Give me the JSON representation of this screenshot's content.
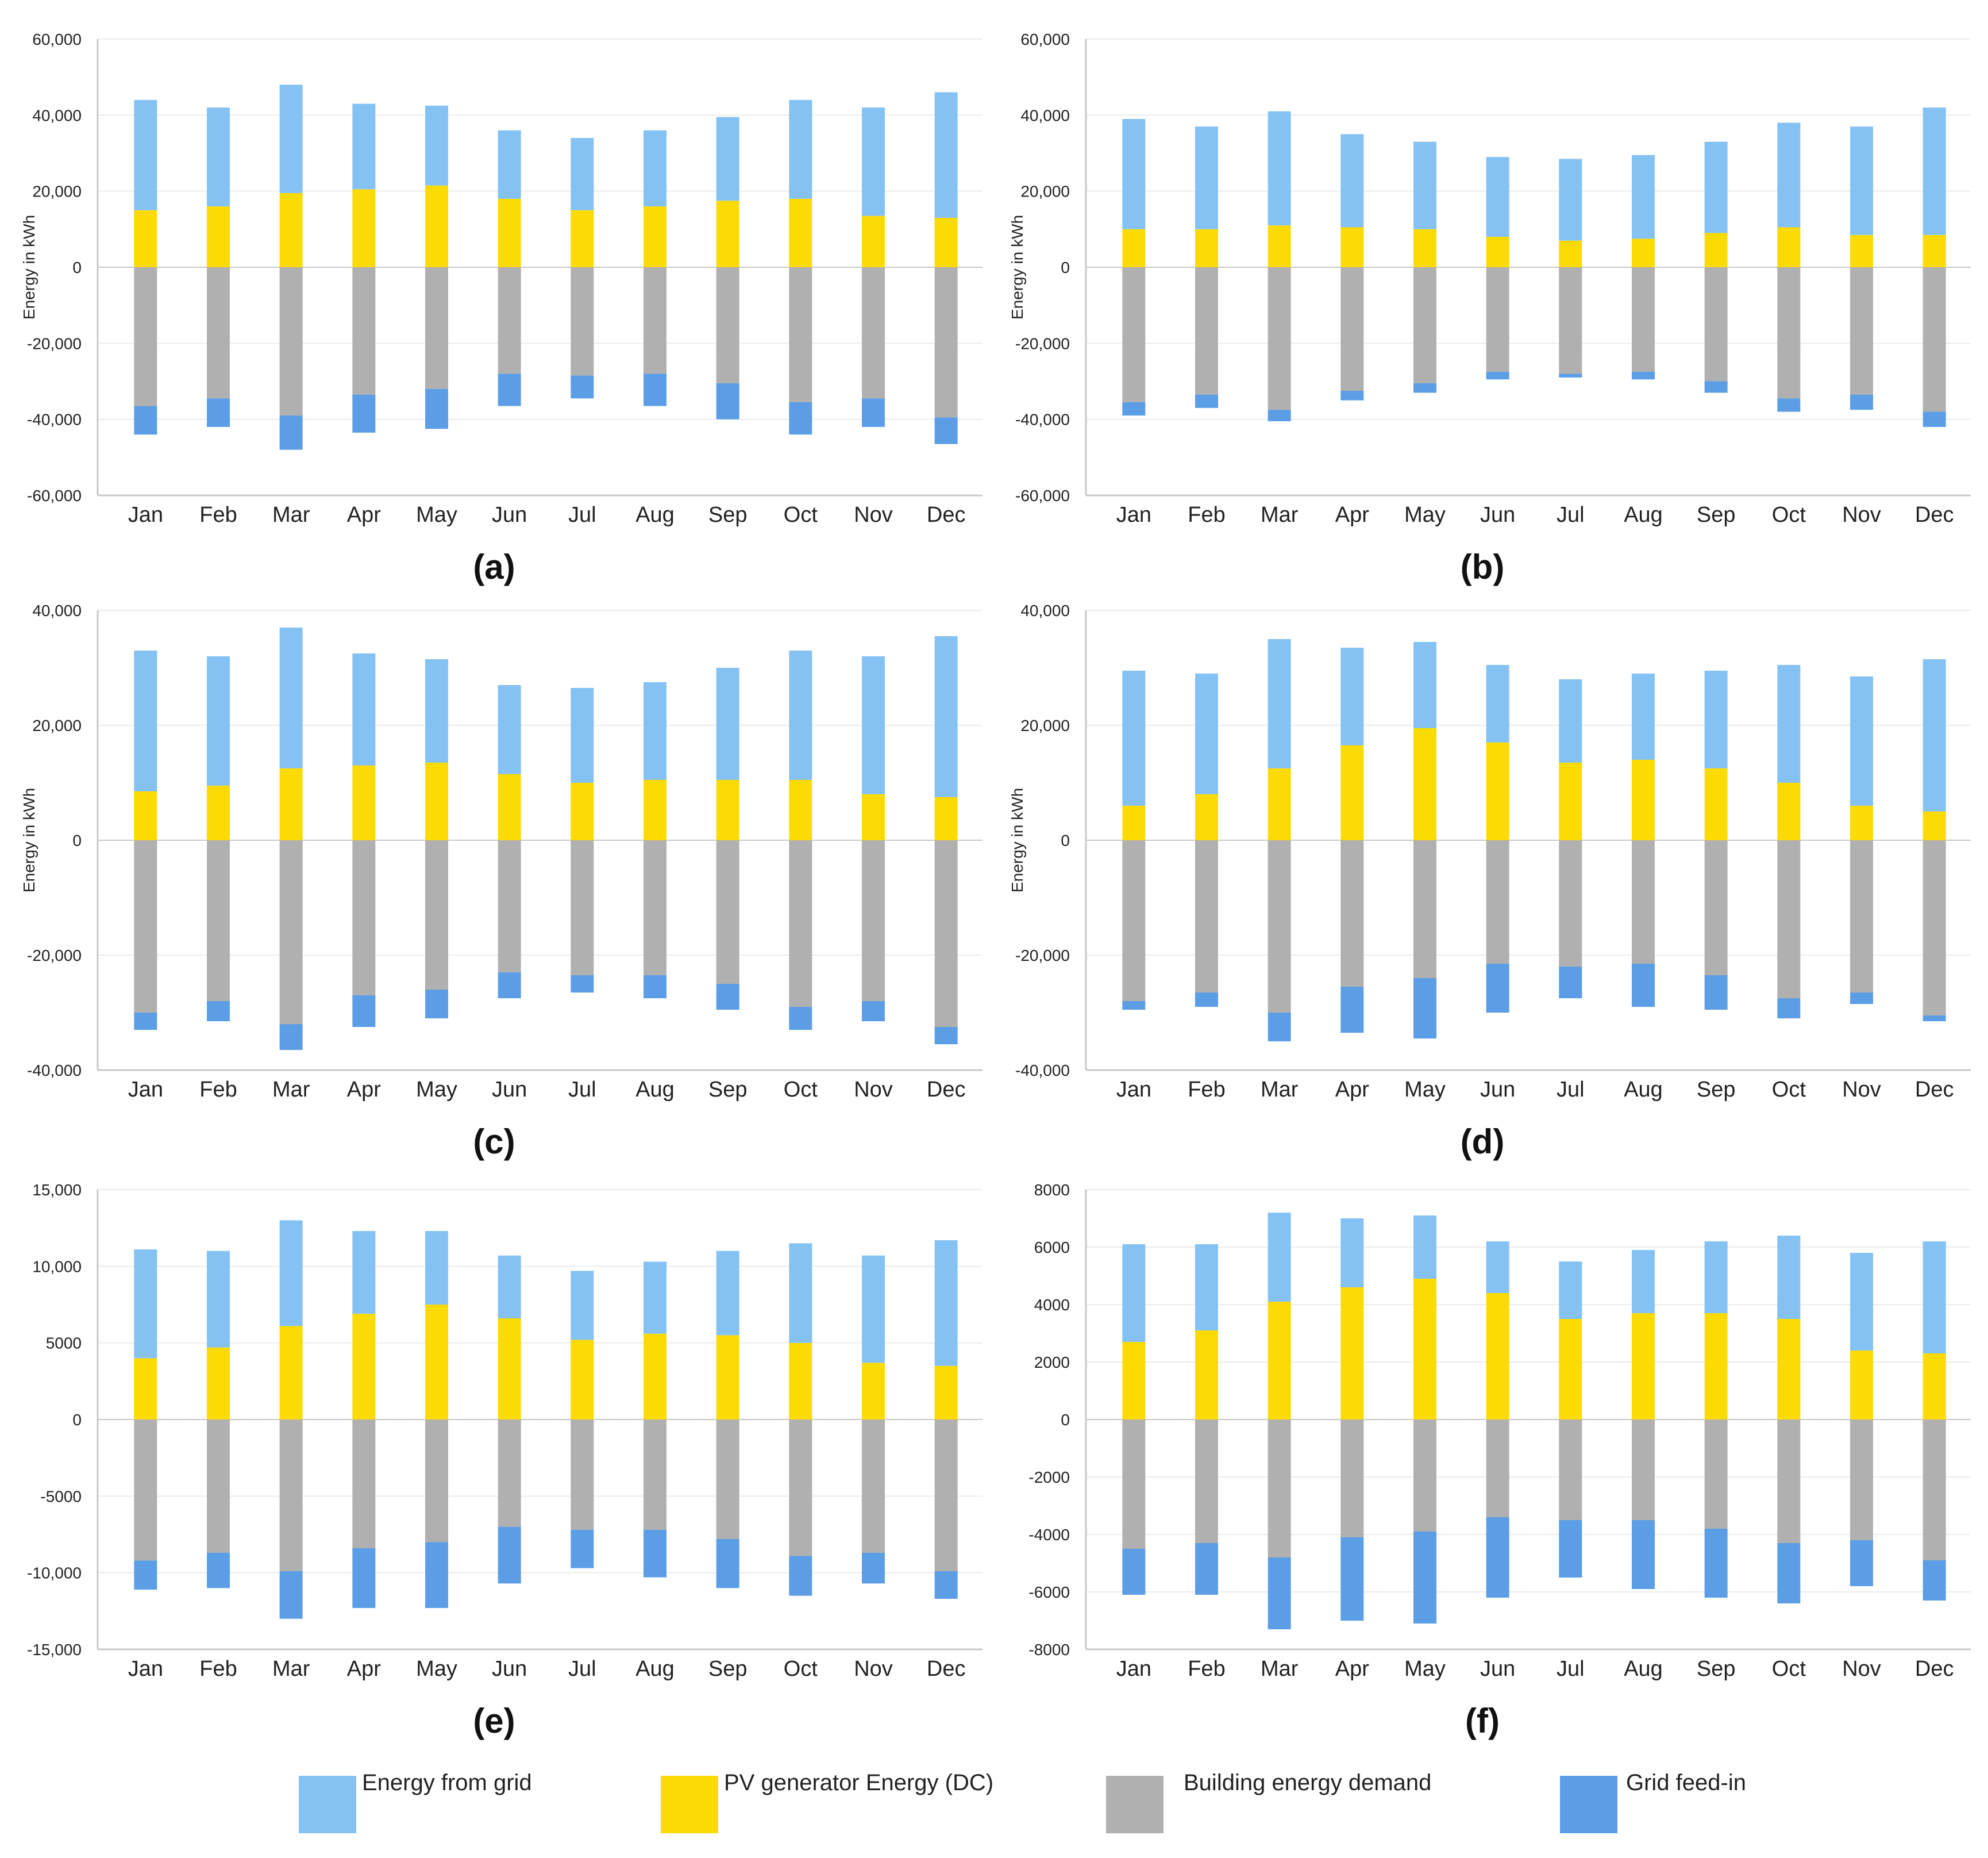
{
  "colors": {
    "grid_energy": "#85c2f4",
    "pv": "#fcdb05",
    "demand": "#b0b0b0",
    "feed_in": "#5b9ee6",
    "axis": "#c8c8c8",
    "gridline": "#ececec",
    "text": "#222222"
  },
  "legend": {
    "items": [
      {
        "label": "Energy from grid",
        "color_key": "grid_energy"
      },
      {
        "label": "PV generator Energy (DC)",
        "color_key": "pv"
      },
      {
        "label": "Building energy demand",
        "color_key": "demand"
      },
      {
        "label": "Grid feed-in",
        "color_key": "feed_in"
      }
    ]
  },
  "chart_data": [
    {
      "id": "a",
      "panel_label": "(a)",
      "type": "bar",
      "stacked": true,
      "ylabel": "Energy in kWh",
      "ylim": [
        -60000,
        60000
      ],
      "yticks": [
        60000,
        40000,
        20000,
        0,
        -20000,
        -40000,
        -60000
      ],
      "ytick_labels": [
        "60,000",
        "40,000",
        "20,000",
        "0",
        "-20,000",
        "-40,000",
        "-60,000"
      ],
      "categories": [
        "Jan",
        "Feb",
        "Mar",
        "Apr",
        "May",
        "Jun",
        "Jul",
        "Aug",
        "Sep",
        "Oct",
        "Nov",
        "Dec"
      ],
      "series": [
        {
          "name": "PV generator Energy (DC)",
          "values": [
            15000,
            16000,
            19500,
            20500,
            21500,
            18000,
            15000,
            16000,
            17500,
            18000,
            13500,
            13000
          ]
        },
        {
          "name": "Energy from grid",
          "values": [
            29000,
            26000,
            28500,
            22500,
            21000,
            18000,
            19000,
            20000,
            22000,
            26000,
            28500,
            33000
          ]
        },
        {
          "name": "Building energy demand",
          "values": [
            -36500,
            -34500,
            -39000,
            -33500,
            -32000,
            -28000,
            -28500,
            -28000,
            -30500,
            -35500,
            -34500,
            -39500
          ]
        },
        {
          "name": "Grid feed-in",
          "values": [
            -7500,
            -7500,
            -9000,
            -10000,
            -10500,
            -8500,
            -6000,
            -8500,
            -9500,
            -8500,
            -7500,
            -7000
          ]
        }
      ]
    },
    {
      "id": "b",
      "panel_label": "(b)",
      "type": "bar",
      "stacked": true,
      "ylabel": "Energy in kWh",
      "ylim": [
        -60000,
        60000
      ],
      "yticks": [
        60000,
        40000,
        20000,
        0,
        -20000,
        -40000,
        -60000
      ],
      "ytick_labels": [
        "60,000",
        "40,000",
        "20,000",
        "0",
        "-20,000",
        "-40,000",
        "-60,000"
      ],
      "categories": [
        "Jan",
        "Feb",
        "Mar",
        "Apr",
        "May",
        "Jun",
        "Jul",
        "Aug",
        "Sep",
        "Oct",
        "Nov",
        "Dec"
      ],
      "series": [
        {
          "name": "PV generator Energy (DC)",
          "values": [
            10000,
            10000,
            11000,
            10500,
            10000,
            8000,
            7000,
            7500,
            9000,
            10500,
            8500,
            8500
          ]
        },
        {
          "name": "Energy from grid",
          "values": [
            29000,
            27000,
            30000,
            24500,
            23000,
            21000,
            21500,
            22000,
            24000,
            27500,
            28500,
            33500
          ]
        },
        {
          "name": "Building energy demand",
          "values": [
            -35500,
            -33500,
            -37500,
            -32500,
            -30500,
            -27500,
            -28000,
            -27500,
            -30000,
            -34500,
            -33500,
            -38000
          ]
        },
        {
          "name": "Grid feed-in",
          "values": [
            -3500,
            -3500,
            -3000,
            -2500,
            -2500,
            -2000,
            -1000,
            -2000,
            -3000,
            -3500,
            -4000,
            -4000
          ]
        }
      ]
    },
    {
      "id": "c",
      "panel_label": "(c)",
      "type": "bar",
      "stacked": true,
      "ylabel": "Energy in kWh",
      "ylim": [
        -40000,
        40000
      ],
      "yticks": [
        40000,
        20000,
        0,
        -20000,
        -40000
      ],
      "ytick_labels": [
        "40,000",
        "20,000",
        "0",
        "-20,000",
        "-40,000"
      ],
      "categories": [
        "Jan",
        "Feb",
        "Mar",
        "Apr",
        "May",
        "Jun",
        "Jul",
        "Aug",
        "Sep",
        "Oct",
        "Nov",
        "Dec"
      ],
      "series": [
        {
          "name": "PV generator Energy (DC)",
          "values": [
            8500,
            9500,
            12500,
            13000,
            13500,
            11500,
            10000,
            10500,
            10500,
            10500,
            8000,
            7500
          ]
        },
        {
          "name": "Energy from grid",
          "values": [
            24500,
            22500,
            24500,
            19500,
            18000,
            15500,
            16500,
            17000,
            19500,
            22500,
            24000,
            28000
          ]
        },
        {
          "name": "Building energy demand",
          "values": [
            -30000,
            -28000,
            -32000,
            -27000,
            -26000,
            -23000,
            -23500,
            -23500,
            -25000,
            -29000,
            -28000,
            -32500
          ]
        },
        {
          "name": "Grid feed-in",
          "values": [
            -3000,
            -3500,
            -4500,
            -5500,
            -5000,
            -4500,
            -3000,
            -4000,
            -4500,
            -4000,
            -3500,
            -3000
          ]
        }
      ]
    },
    {
      "id": "d",
      "panel_label": "(d)",
      "type": "bar",
      "stacked": true,
      "ylabel": "Energy in kWh",
      "ylim": [
        -40000,
        40000
      ],
      "yticks": [
        40000,
        20000,
        0,
        -20000,
        -40000
      ],
      "ytick_labels": [
        "40,000",
        "20,000",
        "0",
        "-20,000",
        "-40,000"
      ],
      "categories": [
        "Jan",
        "Feb",
        "Mar",
        "Apr",
        "May",
        "Jun",
        "Jul",
        "Aug",
        "Sep",
        "Oct",
        "Nov",
        "Dec"
      ],
      "series": [
        {
          "name": "PV generator Energy (DC)",
          "values": [
            6000,
            8000,
            12500,
            16500,
            19500,
            17000,
            13500,
            14000,
            12500,
            10000,
            6000,
            5000
          ]
        },
        {
          "name": "Energy from grid",
          "values": [
            23500,
            21000,
            22500,
            17000,
            15000,
            13500,
            14500,
            15000,
            17000,
            20500,
            22500,
            26500
          ]
        },
        {
          "name": "Building energy demand",
          "values": [
            -28000,
            -26500,
            -30000,
            -25500,
            -24000,
            -21500,
            -22000,
            -21500,
            -23500,
            -27500,
            -26500,
            -30500
          ]
        },
        {
          "name": "Grid feed-in",
          "values": [
            -1500,
            -2500,
            -5000,
            -8000,
            -10500,
            -8500,
            -5500,
            -7500,
            -6000,
            -3500,
            -2000,
            -1000
          ]
        }
      ]
    },
    {
      "id": "e",
      "panel_label": "(e)",
      "type": "bar",
      "stacked": true,
      "ylabel": "",
      "ylim": [
        -15000,
        15000
      ],
      "yticks": [
        15000,
        10000,
        5000,
        0,
        -5000,
        -10000,
        -15000
      ],
      "ytick_labels": [
        "15,000",
        "10,000",
        "5000",
        "0",
        "-5000",
        "-10,000",
        "-15,000"
      ],
      "categories": [
        "Jan",
        "Feb",
        "Mar",
        "Apr",
        "May",
        "Jun",
        "Jul",
        "Aug",
        "Sep",
        "Oct",
        "Nov",
        "Dec"
      ],
      "series": [
        {
          "name": "PV generator Energy (DC)",
          "values": [
            4000,
            4700,
            6100,
            6900,
            7500,
            6600,
            5200,
            5600,
            5500,
            5000,
            3700,
            3500
          ]
        },
        {
          "name": "Energy from grid",
          "values": [
            7100,
            6300,
            6900,
            5400,
            4800,
            4100,
            4500,
            4700,
            5500,
            6500,
            7000,
            8200
          ]
        },
        {
          "name": "Building energy demand",
          "values": [
            -9200,
            -8700,
            -9900,
            -8400,
            -8000,
            -7000,
            -7200,
            -7200,
            -7800,
            -8900,
            -8700,
            -9900
          ]
        },
        {
          "name": "Grid feed-in",
          "values": [
            -1900,
            -2300,
            -3100,
            -3900,
            -4300,
            -3700,
            -2500,
            -3100,
            -3200,
            -2600,
            -2000,
            -1800
          ]
        }
      ]
    },
    {
      "id": "f",
      "panel_label": "(f)",
      "type": "bar",
      "stacked": true,
      "ylabel": "",
      "ylim": [
        -8000,
        8000
      ],
      "yticks": [
        8000,
        6000,
        4000,
        2000,
        0,
        -2000,
        -4000,
        -6000,
        -8000
      ],
      "ytick_labels": [
        "8000",
        "6000",
        "4000",
        "2000",
        "0",
        "-2000",
        "-4000",
        "-6000",
        "-8000"
      ],
      "categories": [
        "Jan",
        "Feb",
        "Mar",
        "Apr",
        "May",
        "Jun",
        "Jul",
        "Aug",
        "Sep",
        "Oct",
        "Nov",
        "Dec"
      ],
      "series": [
        {
          "name": "PV generator Energy (DC)",
          "values": [
            2700,
            3100,
            4100,
            4600,
            4900,
            4400,
            3500,
            3700,
            3700,
            3500,
            2400,
            2300
          ]
        },
        {
          "name": "Energy from grid",
          "values": [
            3400,
            3000,
            3100,
            2400,
            2200,
            1800,
            2000,
            2200,
            2500,
            2900,
            3400,
            3900
          ]
        },
        {
          "name": "Building energy demand",
          "values": [
            -4500,
            -4300,
            -4800,
            -4100,
            -3900,
            -3400,
            -3500,
            -3500,
            -3800,
            -4300,
            -4200,
            -4900
          ]
        },
        {
          "name": "Grid feed-in",
          "values": [
            -1600,
            -1800,
            -2500,
            -2900,
            -3200,
            -2800,
            -2000,
            -2400,
            -2400,
            -2100,
            -1600,
            -1400
          ]
        }
      ]
    }
  ]
}
